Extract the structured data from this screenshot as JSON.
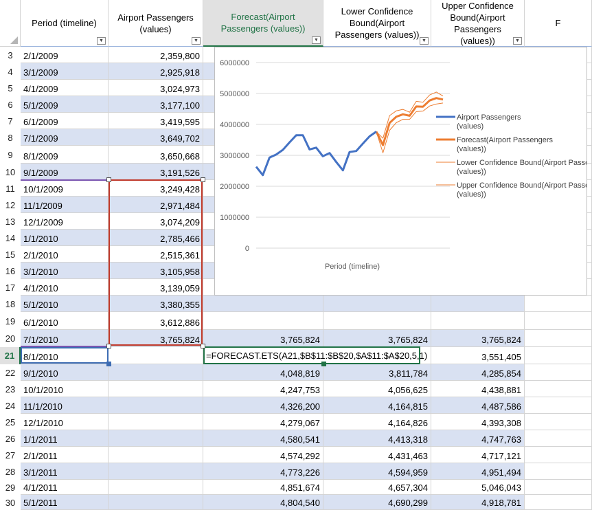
{
  "headers": {
    "A": "Period (timeline)",
    "B": "Airport Passengers (values)",
    "C": "Forecast(Airport Passengers (values))",
    "D": "Lower Confidence Bound(Airport Passengers (values))",
    "E": "Upper Confidence Bound(Airport Passengers (values))",
    "F": "F"
  },
  "rows": [
    {
      "n": "3",
      "a": "2/1/2009",
      "b": "2,359,800",
      "c": "",
      "d": "",
      "e": ""
    },
    {
      "n": "4",
      "a": "3/1/2009",
      "b": "2,925,918",
      "c": "",
      "d": "",
      "e": ""
    },
    {
      "n": "5",
      "a": "4/1/2009",
      "b": "3,024,973",
      "c": "",
      "d": "",
      "e": ""
    },
    {
      "n": "6",
      "a": "5/1/2009",
      "b": "3,177,100",
      "c": "",
      "d": "",
      "e": ""
    },
    {
      "n": "7",
      "a": "6/1/2009",
      "b": "3,419,595",
      "c": "",
      "d": "",
      "e": ""
    },
    {
      "n": "8",
      "a": "7/1/2009",
      "b": "3,649,702",
      "c": "",
      "d": "",
      "e": ""
    },
    {
      "n": "9",
      "a": "8/1/2009",
      "b": "3,650,668",
      "c": "",
      "d": "",
      "e": ""
    },
    {
      "n": "10",
      "a": "9/1/2009",
      "b": "3,191,526",
      "c": "",
      "d": "",
      "e": ""
    },
    {
      "n": "11",
      "a": "10/1/2009",
      "b": "3,249,428",
      "c": "",
      "d": "",
      "e": ""
    },
    {
      "n": "12",
      "a": "11/1/2009",
      "b": "2,971,484",
      "c": "",
      "d": "",
      "e": ""
    },
    {
      "n": "13",
      "a": "12/1/2009",
      "b": "3,074,209",
      "c": "",
      "d": "",
      "e": ""
    },
    {
      "n": "14",
      "a": "1/1/2010",
      "b": "2,785,466",
      "c": "",
      "d": "",
      "e": ""
    },
    {
      "n": "15",
      "a": "2/1/2010",
      "b": "2,515,361",
      "c": "",
      "d": "",
      "e": ""
    },
    {
      "n": "16",
      "a": "3/1/2010",
      "b": "3,105,958",
      "c": "",
      "d": "",
      "e": ""
    },
    {
      "n": "17",
      "a": "4/1/2010",
      "b": "3,139,059",
      "c": "",
      "d": "",
      "e": ""
    },
    {
      "n": "18",
      "a": "5/1/2010",
      "b": "3,380,355",
      "c": "",
      "d": "",
      "e": ""
    },
    {
      "n": "19",
      "a": "6/1/2010",
      "b": "3,612,886",
      "c": "",
      "d": "",
      "e": ""
    },
    {
      "n": "20",
      "a": "7/1/2010",
      "b": "3,765,824",
      "c": "3,765,824",
      "d": "3,765,824",
      "e": "3,765,824"
    },
    {
      "n": "21",
      "a": "8/1/2010",
      "b": "",
      "c": "",
      "d": "",
      "e": "3,551,405"
    },
    {
      "n": "22",
      "a": "9/1/2010",
      "b": "",
      "c": "4,048,819",
      "d": "3,811,784",
      "e": "4,285,854"
    },
    {
      "n": "23",
      "a": "10/1/2010",
      "b": "",
      "c": "4,247,753",
      "d": "4,056,625",
      "e": "4,438,881"
    },
    {
      "n": "24",
      "a": "11/1/2010",
      "b": "",
      "c": "4,326,200",
      "d": "4,164,815",
      "e": "4,487,586"
    },
    {
      "n": "25",
      "a": "12/1/2010",
      "b": "",
      "c": "4,279,067",
      "d": "4,164,826",
      "e": "4,393,308"
    },
    {
      "n": "26",
      "a": "1/1/2011",
      "b": "",
      "c": "4,580,541",
      "d": "4,413,318",
      "e": "4,747,763"
    },
    {
      "n": "27",
      "a": "2/1/2011",
      "b": "",
      "c": "4,574,292",
      "d": "4,431,463",
      "e": "4,717,121"
    },
    {
      "n": "28",
      "a": "3/1/2011",
      "b": "",
      "c": "4,773,226",
      "d": "4,594,959",
      "e": "4,951,494"
    },
    {
      "n": "29",
      "a": "4/1/2011",
      "b": "",
      "c": "4,851,674",
      "d": "4,657,304",
      "e": "5,046,043"
    },
    {
      "n": "30",
      "a": "5/1/2011",
      "b": "",
      "c": "4,804,540",
      "d": "4,690,299",
      "e": "4,918,781"
    }
  ],
  "formula": "=FORECAST.ETS(A21,$B$11:$B$20,$A$11:$A$20,5,1)",
  "chart_data": {
    "type": "line",
    "xlabel": "Period (timeline)",
    "ylim": [
      0,
      6000000
    ],
    "yticks": [
      "6000000",
      "5000000",
      "4000000",
      "3000000",
      "2000000",
      "1000000",
      "0"
    ],
    "legend_position": "right",
    "series": [
      {
        "name": "Airport Passengers (values)",
        "color": "#4472c4",
        "width": 3,
        "values": [
          2630000,
          2359800,
          2925918,
          3024973,
          3177100,
          3419595,
          3649702,
          3650668,
          3191526,
          3249428,
          2971484,
          3074209,
          2785466,
          2515361,
          3105958,
          3139059,
          3380355,
          3612886,
          3765824
        ]
      },
      {
        "name": "Forecast(Airport Passengers (values))",
        "color": "#ed7d31",
        "width": 3,
        "values": [
          null,
          null,
          null,
          null,
          null,
          null,
          null,
          null,
          null,
          null,
          null,
          null,
          null,
          null,
          null,
          null,
          null,
          null,
          3765824,
          3330000,
          4048819,
          4247753,
          4326200,
          4279067,
          4580541,
          4574292,
          4773226,
          4851674,
          4804540
        ]
      },
      {
        "name": "Lower Confidence Bound(Airport Passengers (values))",
        "color": "#ed7d31",
        "width": 1,
        "values": [
          null,
          null,
          null,
          null,
          null,
          null,
          null,
          null,
          null,
          null,
          null,
          null,
          null,
          null,
          null,
          null,
          null,
          null,
          3765824,
          3080000,
          3811784,
          4056625,
          4164815,
          4164826,
          4413318,
          4431463,
          4594959,
          4657304,
          4690299
        ]
      },
      {
        "name": "Upper Confidence Bound(Airport Passengers (values))",
        "color": "#ed7d31",
        "width": 1,
        "values": [
          null,
          null,
          null,
          null,
          null,
          null,
          null,
          null,
          null,
          null,
          null,
          null,
          null,
          null,
          null,
          null,
          null,
          null,
          3765824,
          3551405,
          4285854,
          4438881,
          4487586,
          4393308,
          4747763,
          4717121,
          4951494,
          5046043,
          4918781
        ]
      }
    ]
  }
}
